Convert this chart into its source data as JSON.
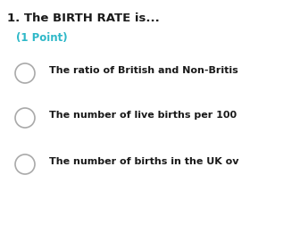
{
  "title": "1. The BIRTH RATE is...",
  "subtitle": "(1 Point)",
  "options": [
    "The ratio of British and Non-Britis",
    "The number of live births per 100",
    "The number of births in the UK ov"
  ],
  "title_color": "#1a1a1a",
  "subtitle_color": "#2eb8c8",
  "option_color": "#1a1a1a",
  "circle_edge_color": "#aaaaaa",
  "bg_color": "#ffffff",
  "title_fontsize": 9.5,
  "subtitle_fontsize": 8.5,
  "option_fontsize": 8.0
}
